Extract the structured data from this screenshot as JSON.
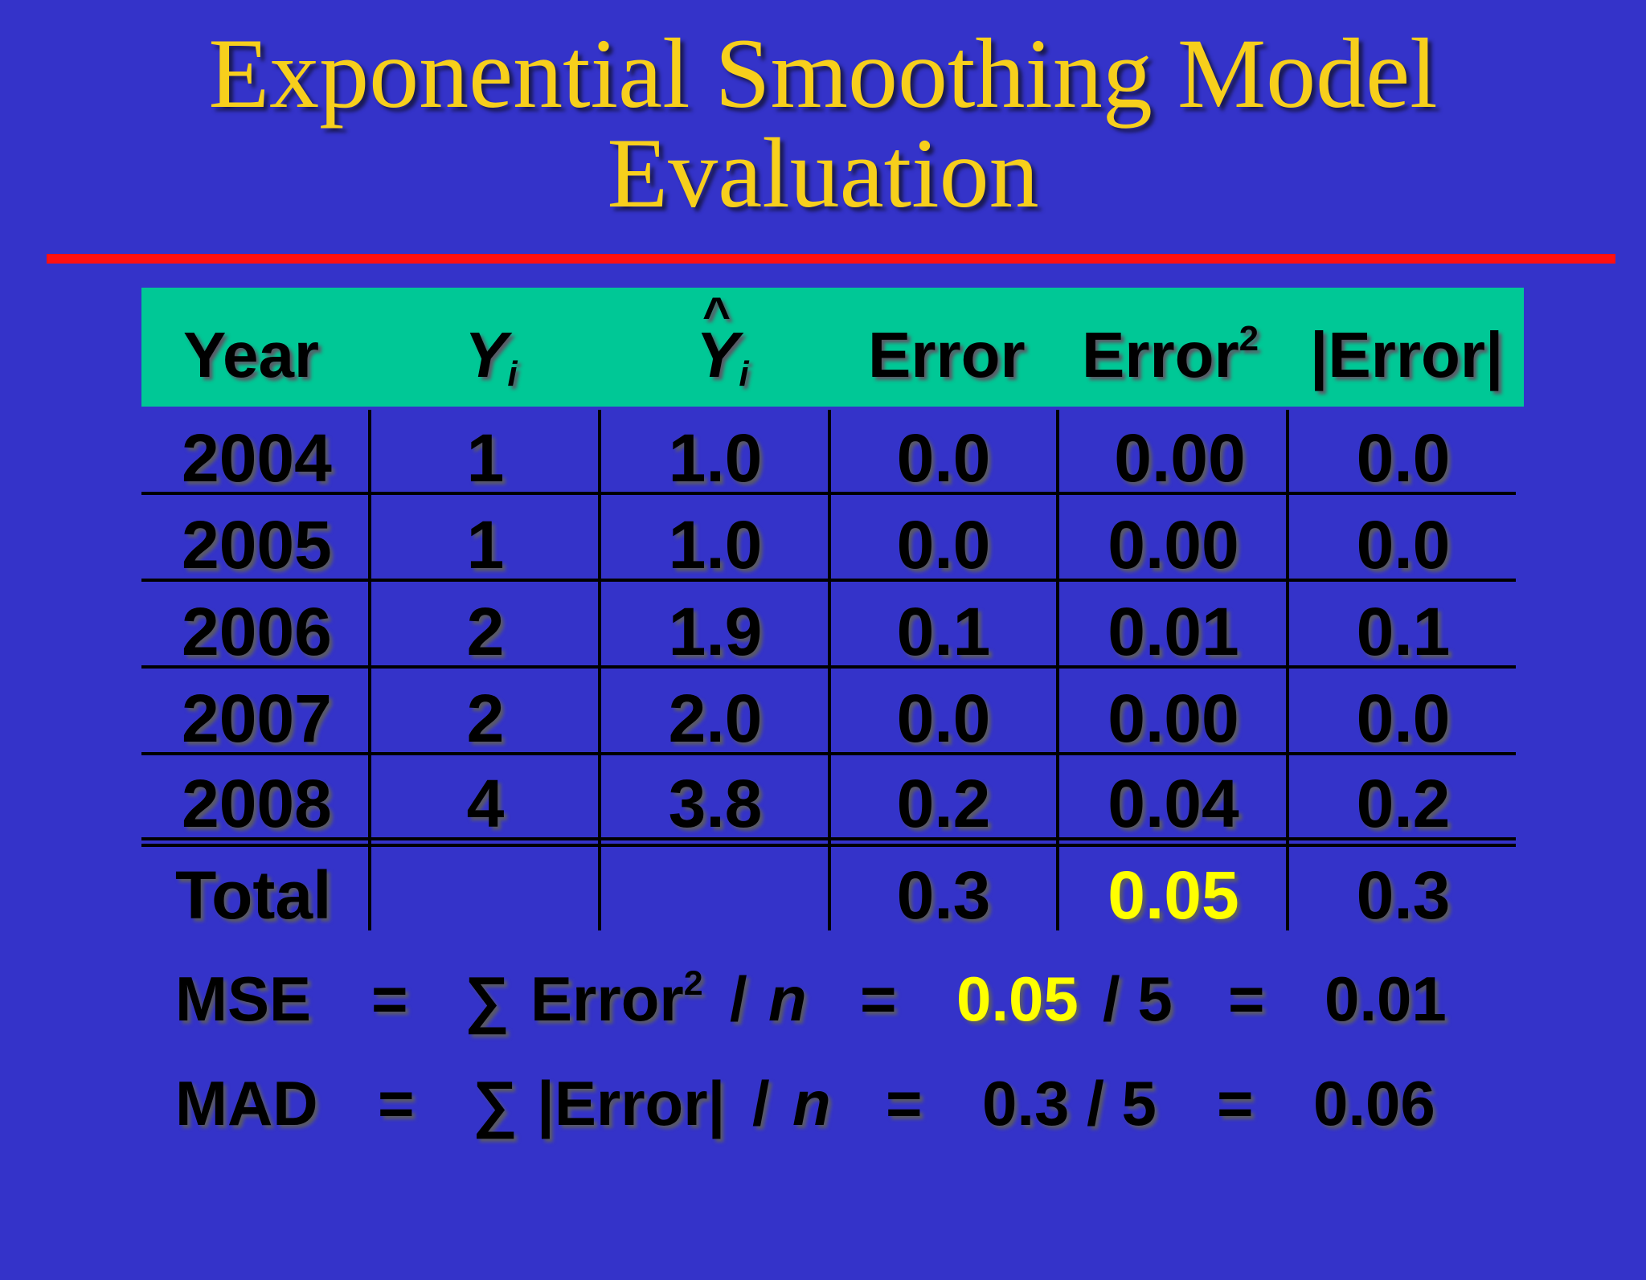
{
  "title": {
    "line1": "Exponential Smoothing Model",
    "line2": "Evaluation"
  },
  "table": {
    "headers": {
      "year": "Year",
      "y": "Y",
      "y_sub": "i",
      "yhat_hat": "^",
      "yhat": "Y",
      "yhat_sub": "i",
      "error": "Error",
      "error2": "Error",
      "error2_sup": "2",
      "abs_error": "|Error|"
    },
    "rows": [
      {
        "year": "2004",
        "y": "1",
        "yhat": "1.0",
        "error": "0.0",
        "error2": "0.00",
        "abs_error": "0.0"
      },
      {
        "year": "2005",
        "y": "1",
        "yhat": "1.0",
        "error": "0.0",
        "error2": "0.00",
        "abs_error": "0.0"
      },
      {
        "year": "2006",
        "y": "2",
        "yhat": "1.9",
        "error": "0.1",
        "error2": "0.01",
        "abs_error": "0.1"
      },
      {
        "year": "2007",
        "y": "2",
        "yhat": "2.0",
        "error": "0.0",
        "error2": "0.00",
        "abs_error": "0.0"
      },
      {
        "year": "2008",
        "y": "4",
        "yhat": "3.8",
        "error": "0.2",
        "error2": "0.04",
        "abs_error": "0.2"
      }
    ],
    "total": {
      "label": "Total",
      "error": "0.3",
      "error2": "0.05",
      "abs_error": "0.3"
    }
  },
  "formulas": {
    "mse": {
      "label": "MSE",
      "eq1": "=",
      "sigma": "∑",
      "term": "Error",
      "term_sup": "2",
      "slash": "/",
      "n": "n",
      "eq2": "=",
      "numerator": "0.05",
      "divisor": "/ 5",
      "eq3": "=",
      "result": "0.01"
    },
    "mad": {
      "label": "MAD",
      "eq1": "=",
      "sigma": "∑",
      "term": "|Error|",
      "slash": "/",
      "n": "n",
      "eq2": "=",
      "expr": "0.3 / 5",
      "eq3": "=",
      "result": "0.06"
    }
  },
  "colors": {
    "background": "#3433c9",
    "title": "#f7cf1c",
    "rule": "#ff1010",
    "header_band": "#00c896",
    "highlight": "#ffff00"
  }
}
